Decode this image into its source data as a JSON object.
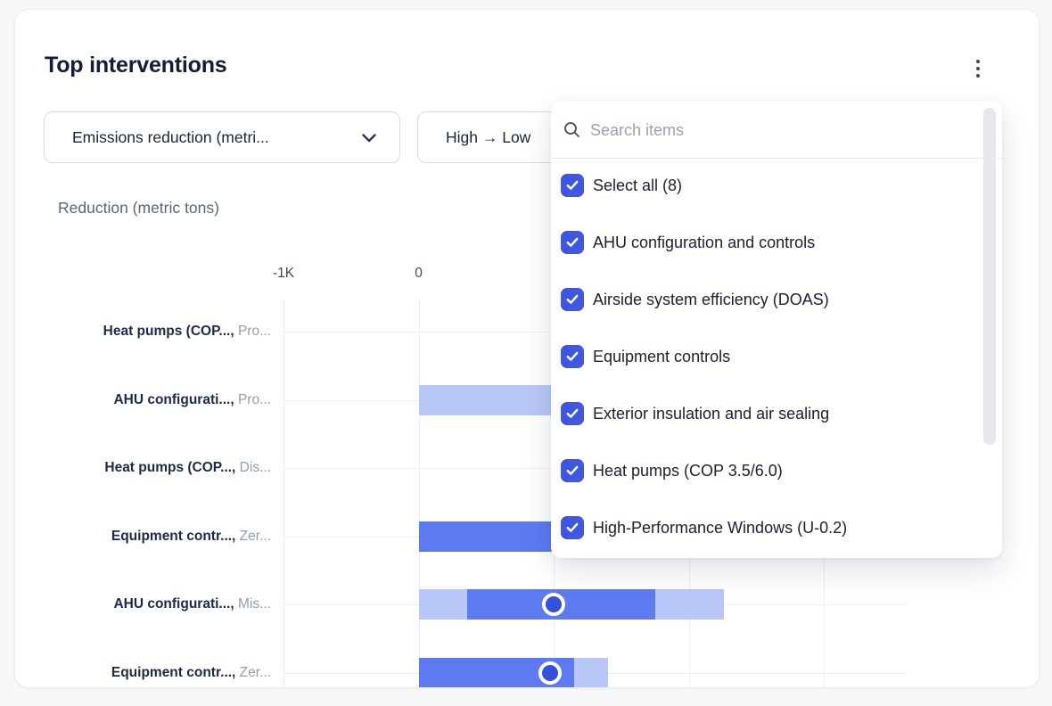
{
  "card": {
    "title": "Top interventions"
  },
  "filters": {
    "metric_dropdown_label": "Emissions reduction (metri...",
    "sort_dropdown_label": "High → Low"
  },
  "dropdown_panel": {
    "search_placeholder": "Search items",
    "items": [
      {
        "label": "Select all (8)",
        "checked": true
      },
      {
        "label": "AHU configuration and controls",
        "checked": true
      },
      {
        "label": "Airside system efficiency (DOAS)",
        "checked": true
      },
      {
        "label": "Equipment controls",
        "checked": true
      },
      {
        "label": "Exterior insulation and air sealing",
        "checked": true
      },
      {
        "label": "Heat pumps (COP 3.5/6.0)",
        "checked": true
      },
      {
        "label": "High-Performance Windows (U-0.2)",
        "checked": true
      }
    ]
  },
  "chart_data": {
    "type": "bar",
    "orientation": "horizontal",
    "title": "Reduction (metric tons)",
    "xlabel": "Reduction (metric tons)",
    "xlim": [
      -1000,
      3620
    ],
    "grid_values": [
      -1000,
      0,
      1000,
      2000,
      3000
    ],
    "x_ticks": [
      {
        "value": -1000,
        "label": "-1K"
      },
      {
        "value": 0,
        "label": "0"
      }
    ],
    "colors": {
      "range": "#b9c6f8",
      "bar": "#5d7af0",
      "marker": "#3452d9"
    },
    "rows": [
      {
        "label": "Heat pumps (COP...,",
        "scenario": "Pro...",
        "segments": [],
        "marker": null
      },
      {
        "label": "AHU configurati...,",
        "scenario": "Pro...",
        "segments": [
          {
            "style": "light",
            "from": 0,
            "to": 1500
          }
        ],
        "marker": null
      },
      {
        "label": "Heat pumps (COP...,",
        "scenario": "Dis...",
        "segments": [],
        "marker": null
      },
      {
        "label": "Equipment contr...,",
        "scenario": "Zer...",
        "segments": [
          {
            "style": "solid",
            "from": 0,
            "to": 1500
          }
        ],
        "marker": null
      },
      {
        "label": "AHU configurati...,",
        "scenario": "Mis...",
        "segments": [
          {
            "style": "light",
            "from": 0,
            "to": 360
          },
          {
            "style": "solid",
            "from": 360,
            "to": 1750
          },
          {
            "style": "light",
            "from": 1750,
            "to": 2260
          }
        ],
        "marker": 1000
      },
      {
        "label": "Equipment contr...,",
        "scenario": "Zer...",
        "segments": [
          {
            "style": "solid",
            "from": 0,
            "to": 1150
          },
          {
            "style": "light",
            "from": 1150,
            "to": 1400
          }
        ],
        "marker": 975
      }
    ]
  }
}
